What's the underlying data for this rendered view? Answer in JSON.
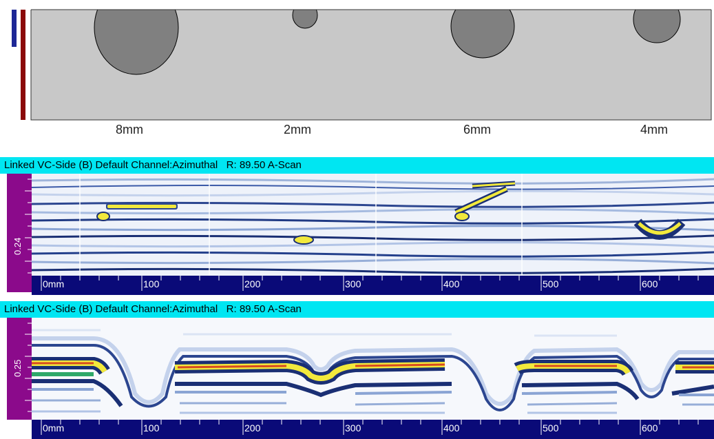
{
  "diagram": {
    "defects": [
      {
        "label": "8mm"
      },
      {
        "label": "2mm"
      },
      {
        "label": "6mm"
      },
      {
        "label": "4mm"
      }
    ]
  },
  "panels": [
    {
      "title": "Linked VC-Side (B) Default Channel:Azimuthal   R: 89.50 A-Scan",
      "depth_label": "0.24"
    },
    {
      "title": "Linked VC-Side (B) Default Channel:Azimuthal   R: 89.50 A-Scan",
      "depth_label": "0.25"
    }
  ],
  "ruler": {
    "labels": [
      "0mm",
      "100",
      "200",
      "300",
      "400",
      "500",
      "600"
    ]
  },
  "colors": {
    "title_bar": "#00e6f2",
    "ruler_bg": "#0a0a78",
    "depth_scale_bg": "#8b0a8b",
    "diagram_fill": "#c8c8c8",
    "defect_fill": "#808080",
    "indicator_blue": "#1e2896",
    "indicator_red": "#8b0a0a"
  }
}
